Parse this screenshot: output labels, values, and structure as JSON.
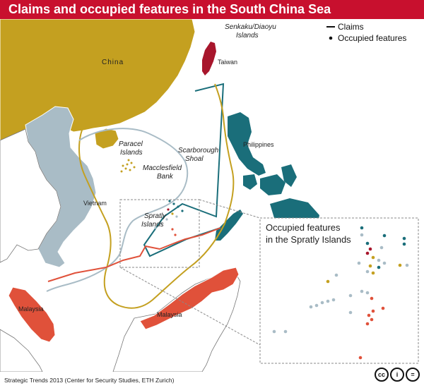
{
  "header": {
    "title": "Claims and occupied features in the South China Sea"
  },
  "legend": {
    "claims": "Claims",
    "occupied": "Occupied features"
  },
  "labels": {
    "china": "China",
    "taiwan": "Taiwan",
    "philippines": "Philippines",
    "vietnam": "Vietnam",
    "malaysia_west": "Malaysia",
    "malaysia_east": "Malaysia",
    "senkaku_line1": "Senkaku/Diaoyu",
    "senkaku_line2": "Islands",
    "paracel_line1": "Paracel",
    "paracel_line2": "Islands",
    "scarborough_line1": "Scarborough",
    "scarborough_line2": "Shoal",
    "macclesfield_line1": "Macclesfield",
    "macclesfield_line2": "Bank",
    "spratly_line1": "Spratly",
    "spratly_line2": "Islands"
  },
  "inset": {
    "title_line1": "Occupied features",
    "title_line2": "in the Spratly Islands"
  },
  "footer": {
    "credit": "Strategic Trends 2013 (Center for Security Studies, ETH Zurich)"
  },
  "badges": {
    "cc": "cc",
    "by": "i",
    "nd": "="
  },
  "colors": {
    "header": "#c8102e",
    "china": "#c4a020",
    "taiwan": "#a8162c",
    "philippines": "#1a6e7a",
    "vietnam": "#a9bcc6",
    "malaysia": "#e0513a",
    "other_land": "#ffffff",
    "sea": "#ffffff"
  }
}
